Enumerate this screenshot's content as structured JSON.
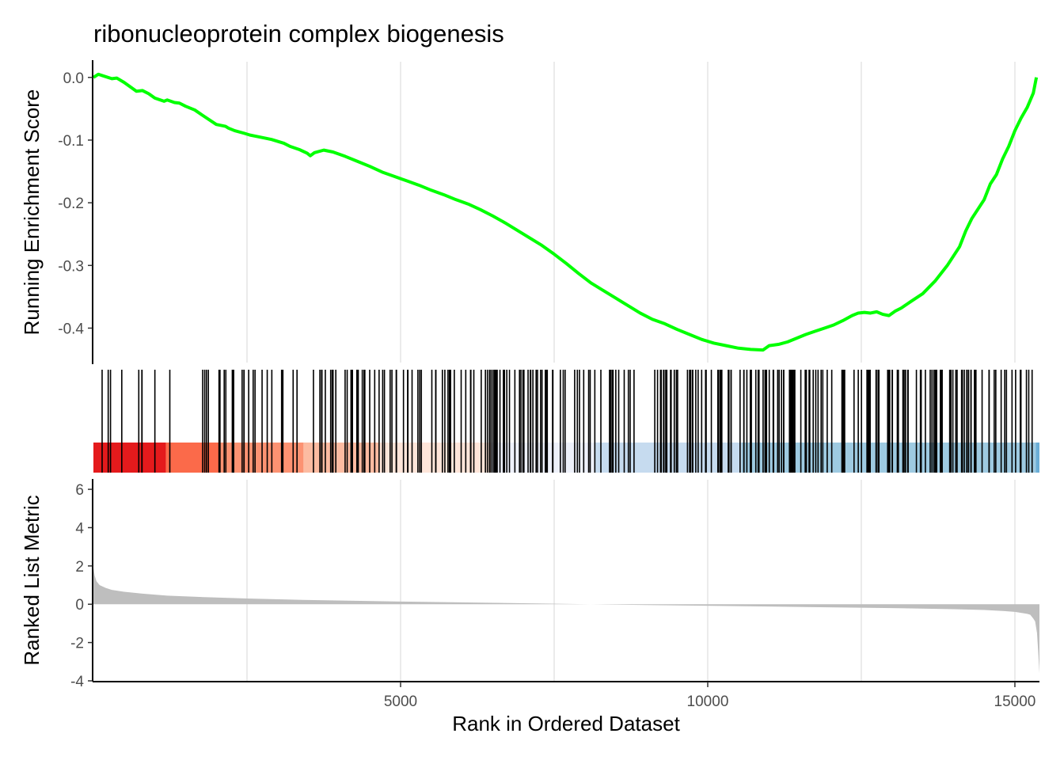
{
  "chart_data": {
    "type": "line",
    "title": "ribonucleoprotein complex biogenesis",
    "xlabel": "Rank in Ordered Dataset",
    "x_range": [
      0,
      15400
    ],
    "x_ticks": [
      5000,
      10000,
      15000
    ],
    "x_tick_labels": [
      "5000",
      "10000",
      "15000"
    ],
    "grid": "vertical major gridlines",
    "colors": {
      "running_score": "#00ff00",
      "hits": "#000000",
      "ranked_metric": "#bebebe",
      "grid": "#ebebeb",
      "axis": "#000000",
      "heat_band": [
        "#e41a1c",
        "#fb6a4a",
        "#fc9272",
        "#fcbba1",
        "#fee5d9",
        "#eef1fa",
        "#c6dbef",
        "#9ecae1",
        "#6baed6",
        "#2171b5",
        "#084594"
      ]
    },
    "panels": [
      {
        "name": "running-enrichment",
        "ylabel": "Running Enrichment Score",
        "ylim": [
          -0.455,
          0.025
        ],
        "y_ticks": [
          0.0,
          -0.1,
          -0.2,
          -0.3,
          -0.4
        ],
        "y_tick_labels": [
          "0.0",
          "-0.1",
          "-0.2",
          "-0.3",
          "-0.4"
        ],
        "series": [
          {
            "x": [
              0,
              80,
              300,
              380,
              500,
              700,
              800,
              900,
              1000,
              1150,
              1200,
              1320,
              1400,
              1500,
              1650,
              1800,
              2000,
              2150,
              2200,
              2300,
              2450,
              2550,
              2650,
              2800,
              2900,
              3100,
              3200,
              3350,
              3480,
              3530,
              3600,
              3750,
              3900,
              4100,
              4300,
              4500,
              4700,
              4900,
              5100,
              5300,
              5500,
              5700,
              5900,
              6100,
              6300,
              6500,
              6700,
              6900,
              7100,
              7300,
              7500,
              7700,
              7900,
              8100,
              8300,
              8500,
              8700,
              8900,
              9100,
              9300,
              9500,
              9700,
              9900,
              10100,
              10300,
              10500,
              10700,
              10900,
              11000,
              11150,
              11300,
              11450,
              11600,
              11750,
              11900,
              12050,
              12200,
              12350,
              12450,
              12550,
              12650,
              12750,
              12850,
              12950,
              13050,
              13150,
              13300,
              13500,
              13700,
              13900,
              14000,
              14100,
              14200,
              14300,
              14400,
              14500,
              14600,
              14700,
              14800,
              14900,
              15000,
              15100,
              15200,
              15300,
              15350
            ],
            "y": [
              0.0,
              0.005,
              -0.002,
              -0.001,
              -0.008,
              -0.022,
              -0.021,
              -0.026,
              -0.033,
              -0.038,
              -0.036,
              -0.04,
              -0.041,
              -0.046,
              -0.052,
              -0.062,
              -0.075,
              -0.078,
              -0.081,
              -0.085,
              -0.089,
              -0.092,
              -0.094,
              -0.097,
              -0.099,
              -0.105,
              -0.11,
              -0.115,
              -0.121,
              -0.125,
              -0.12,
              -0.116,
              -0.119,
              -0.126,
              -0.134,
              -0.142,
              -0.151,
              -0.158,
              -0.165,
              -0.172,
              -0.18,
              -0.187,
              -0.195,
              -0.202,
              -0.211,
              -0.221,
              -0.232,
              -0.244,
              -0.256,
              -0.268,
              -0.282,
              -0.297,
              -0.313,
              -0.328,
              -0.34,
              -0.352,
              -0.364,
              -0.376,
              -0.386,
              -0.393,
              -0.402,
              -0.41,
              -0.418,
              -0.424,
              -0.428,
              -0.432,
              -0.434,
              -0.435,
              -0.428,
              -0.426,
              -0.422,
              -0.416,
              -0.41,
              -0.405,
              -0.4,
              -0.395,
              -0.388,
              -0.38,
              -0.376,
              -0.375,
              -0.376,
              -0.374,
              -0.378,
              -0.38,
              -0.373,
              -0.368,
              -0.358,
              -0.345,
              -0.325,
              -0.3,
              -0.285,
              -0.27,
              -0.245,
              -0.225,
              -0.21,
              -0.195,
              -0.17,
              -0.155,
              -0.13,
              -0.11,
              -0.085,
              -0.065,
              -0.048,
              -0.025,
              0.0
            ]
          }
        ]
      },
      {
        "name": "hit-positions",
        "hit_density": [
          [
            0,
            2000,
            0.25
          ],
          [
            2000,
            3500,
            0.55
          ],
          [
            3500,
            4500,
            0.9
          ],
          [
            4500,
            6500,
            0.7
          ],
          [
            6500,
            8500,
            0.9
          ],
          [
            8500,
            10500,
            0.85
          ],
          [
            10500,
            13000,
            1.0
          ],
          [
            13000,
            15400,
            1.0
          ]
        ],
        "heat_band_breaks": [
          0,
          1180,
          2050,
          3420,
          4640,
          6470,
          8170,
          10550,
          15340,
          15400
        ]
      },
      {
        "name": "ranked-list-metric",
        "ylabel": "Ranked List Metric",
        "ylim": [
          -4,
          6.5
        ],
        "y_ticks": [
          6,
          4,
          2,
          0,
          -2,
          -4
        ],
        "y_tick_labels": [
          "6",
          "4",
          "2",
          "0",
          "-2",
          "-4"
        ],
        "series": [
          {
            "x": [
              0,
              20,
              50,
              100,
              200,
              300,
              500,
              800,
              1200,
              1800,
              2500,
              3500,
              5000,
              7000,
              9000,
              11000,
              13000,
              14000,
              14500,
              14800,
              15000,
              15100,
              15200,
              15250,
              15300,
              15330,
              15360,
              15380,
              15400
            ],
            "y": [
              1.9,
              1.5,
              1.2,
              1.0,
              0.85,
              0.75,
              0.65,
              0.55,
              0.45,
              0.37,
              0.3,
              0.22,
              0.14,
              0.05,
              -0.04,
              -0.12,
              -0.2,
              -0.26,
              -0.3,
              -0.35,
              -0.4,
              -0.45,
              -0.5,
              -0.55,
              -0.75,
              -0.9,
              -1.5,
              -2.5,
              -3.6
            ]
          }
        ]
      }
    ]
  }
}
